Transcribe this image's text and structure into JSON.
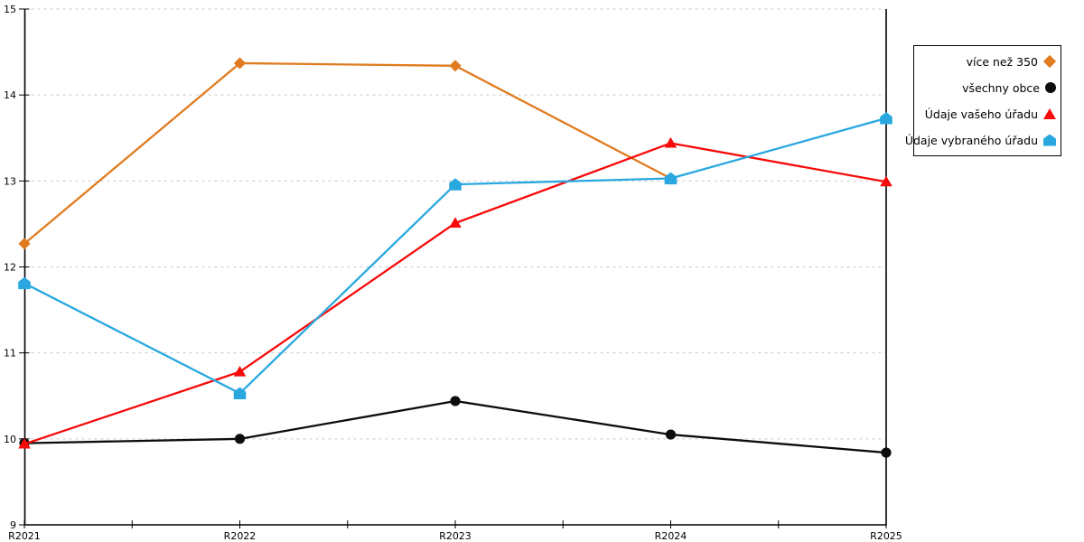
{
  "chart_data": {
    "type": "line",
    "title": "",
    "xlabel": "",
    "ylabel": "",
    "categories": [
      "R2021",
      "R2022",
      "R2023",
      "R2024",
      "R2025"
    ],
    "series": [
      {
        "name": "více než 350",
        "color": "#e07b1f",
        "marker": "diamond",
        "values": [
          12.27,
          14.37,
          14.34,
          13.03,
          null
        ]
      },
      {
        "name": "všechny obce",
        "color": "#0d0d0d",
        "marker": "circle",
        "values": [
          9.95,
          10.0,
          10.44,
          10.05,
          9.84
        ]
      },
      {
        "name": "Údaje vašeho úřadu",
        "color": "#f70a0a",
        "marker": "triangle",
        "values": [
          9.94,
          10.78,
          12.51,
          13.44,
          12.99
        ]
      },
      {
        "name": "Údaje vybraného úřadu",
        "color": "#29a8e0",
        "marker": "pentagon",
        "values": [
          11.81,
          10.53,
          12.96,
          13.03,
          13.73
        ]
      }
    ],
    "ylim": [
      9,
      15
    ],
    "yticks": [
      9,
      10,
      11,
      12,
      13,
      14,
      15
    ],
    "grid": "horizontal-dashed",
    "grid_color": "#c9c9c9",
    "axis_color": "#000000",
    "legend_position": "top-right-outside"
  }
}
